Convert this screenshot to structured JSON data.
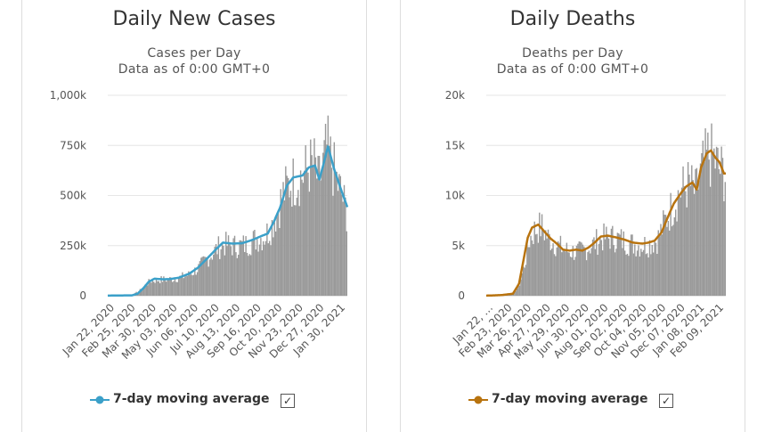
{
  "panels": [
    {
      "title": "Daily New Cases",
      "subtitle": "Cases per Day",
      "data_note": "Data as of 0:00 GMT+0",
      "legend_label": "7-day moving average",
      "legend_color": "#3ba0c9",
      "checked": true
    },
    {
      "title": "Daily Deaths",
      "subtitle": "Deaths per Day",
      "data_note": "Data as of 0:00 GMT+0",
      "legend_label": "7-day moving average",
      "legend_color": "#b8730f",
      "checked": true
    }
  ],
  "chart_data": [
    {
      "type": "bar",
      "title": "Daily New Cases",
      "subtitle": "Cases per Day",
      "bar_color": "#999999",
      "line_color": "#3ba0c9",
      "ylim": [
        0,
        1000000
      ],
      "y_ticks": [
        {
          "value": 0,
          "label": "0"
        },
        {
          "value": 250000,
          "label": "250k"
        },
        {
          "value": 500000,
          "label": "500k"
        },
        {
          "value": 750000,
          "label": "750k"
        },
        {
          "value": 1000000,
          "label": "1,000k"
        }
      ],
      "x_tick_labels": [
        "Jan 22, 2020",
        "Feb 25, 2020",
        "Mar 30, 2020",
        "May 03, 2020",
        "Jun 06, 2020",
        "Jul 10, 2020",
        "Aug 13, 2020",
        "Sep 16, 2020",
        "Oct 20, 2020",
        "Nov 23, 2020",
        "Dec 27, 2020",
        "Jan 30, 2021"
      ],
      "series": [
        {
          "name": "Daily cases",
          "points": [
            [
              "Jan 22, 2020",
              500
            ],
            [
              "Feb 10, 2020",
              2000
            ],
            [
              "Mar 01, 2020",
              2000
            ],
            [
              "Mar 15, 2020",
              30000
            ],
            [
              "Mar 25, 2020",
              62000
            ],
            [
              "Apr 01, 2020",
              78000
            ],
            [
              "Apr 15, 2020",
              82000
            ],
            [
              "May 01, 2020",
              85000
            ],
            [
              "May 15, 2020",
              92000
            ],
            [
              "Jun 01, 2020",
              108000
            ],
            [
              "Jun 15, 2020",
              140000
            ],
            [
              "Jul 01, 2020",
              195000
            ],
            [
              "Jul 15, 2020",
              240000
            ],
            [
              "Jul 25, 2020",
              265000
            ],
            [
              "Aug 15, 2020",
              255000
            ],
            [
              "Aug 31, 2020",
              262000
            ],
            [
              "Sep 15, 2020",
              290000
            ],
            [
              "Sep 30, 2020",
              305000
            ],
            [
              "Oct 10, 2020",
              350000
            ],
            [
              "Oct 20, 2020",
              430000
            ],
            [
              "Oct 31, 2020",
              530000
            ],
            [
              "Nov 10, 2020",
              580000
            ],
            [
              "Nov 20, 2020",
              600000
            ],
            [
              "Dec 01, 2020",
              620000
            ],
            [
              "Dec 10, 2020",
              665000
            ],
            [
              "Dec 20, 2020",
              670000
            ],
            [
              "Dec 25, 2020",
              580000
            ],
            [
              "Jan 01, 2021",
              650000
            ],
            [
              "Jan 08, 2021",
              760000
            ],
            [
              "Jan 15, 2021",
              690000
            ],
            [
              "Jan 25, 2021",
              580000
            ],
            [
              "Feb 01, 2021",
              520000
            ],
            [
              "Feb 10, 2021",
              420000
            ]
          ]
        },
        {
          "name": "7-day moving average",
          "points": [
            [
              "Jan 22, 2020",
              500
            ],
            [
              "Feb 15, 2020",
              1500
            ],
            [
              "Mar 01, 2020",
              2000
            ],
            [
              "Mar 10, 2020",
              10000
            ],
            [
              "Mar 20, 2020",
              40000
            ],
            [
              "Mar 28, 2020",
              70000
            ],
            [
              "Apr 06, 2020",
              85000
            ],
            [
              "Apr 20, 2020",
              82000
            ],
            [
              "May 01, 2020",
              83000
            ],
            [
              "May 15, 2020",
              90000
            ],
            [
              "Jun 01, 2020",
              110000
            ],
            [
              "Jun 15, 2020",
              140000
            ],
            [
              "Jul 01, 2020",
              190000
            ],
            [
              "Jul 15, 2020",
              235000
            ],
            [
              "Jul 25, 2020",
              265000
            ],
            [
              "Aug 10, 2020",
              260000
            ],
            [
              "Aug 25, 2020",
              262000
            ],
            [
              "Sep 10, 2020",
              278000
            ],
            [
              "Sep 25, 2020",
              298000
            ],
            [
              "Oct 05, 2020",
              310000
            ],
            [
              "Oct 15, 2020",
              370000
            ],
            [
              "Oct 25, 2020",
              440000
            ],
            [
              "Nov 05, 2020",
              550000
            ],
            [
              "Nov 15, 2020",
              590000
            ],
            [
              "Nov 30, 2020",
              600000
            ],
            [
              "Dec 10, 2020",
              640000
            ],
            [
              "Dec 20, 2020",
              650000
            ],
            [
              "Dec 27, 2020",
              580000
            ],
            [
              "Jan 03, 2021",
              660000
            ],
            [
              "Jan 10, 2021",
              745000
            ],
            [
              "Jan 20, 2021",
              630000
            ],
            [
              "Feb 01, 2021",
              520000
            ],
            [
              "Feb 12, 2021",
              425000
            ]
          ]
        }
      ]
    },
    {
      "type": "bar",
      "title": "Daily Deaths",
      "subtitle": "Deaths per Day",
      "bar_color": "#999999",
      "line_color": "#b8730f",
      "ylim": [
        0,
        20000
      ],
      "y_ticks": [
        {
          "value": 0,
          "label": "0"
        },
        {
          "value": 5000,
          "label": "5k"
        },
        {
          "value": 10000,
          "label": "10k"
        },
        {
          "value": 15000,
          "label": "15k"
        },
        {
          "value": 20000,
          "label": "20k"
        }
      ],
      "x_tick_labels": [
        "Jan 22, …",
        "Feb 23, 2020",
        "Mar 26, 2020",
        "Apr 27, 2020",
        "May 29, 2020",
        "Jun 30, 2020",
        "Aug 01, 2020",
        "Sep 02, 2020",
        "Oct 04, 2020",
        "Nov 05, 2020",
        "Dec 07, 2020",
        "Jan 08, 2021",
        "Feb 09, 2021"
      ],
      "series": [
        {
          "name": "Daily deaths",
          "points": [
            [
              "Jan 22, 2020",
              10
            ],
            [
              "Feb 15, 2020",
              60
            ],
            [
              "Mar 05, 2020",
              200
            ],
            [
              "Mar 15, 2020",
              1000
            ],
            [
              "Mar 25, 2020",
              3500
            ],
            [
              "Apr 01, 2020",
              5800
            ],
            [
              "Apr 10, 2020",
              6800
            ],
            [
              "Apr 20, 2020",
              7100
            ],
            [
              "May 01, 2020",
              6000
            ],
            [
              "May 15, 2020",
              5200
            ],
            [
              "Jun 01, 2020",
              4600
            ],
            [
              "Jun 20, 2020",
              4500
            ],
            [
              "Jul 01, 2020",
              4800
            ],
            [
              "Jul 15, 2020",
              5400
            ],
            [
              "Jul 25, 2020",
              5900
            ],
            [
              "Aug 10, 2020",
              6000
            ],
            [
              "Aug 25, 2020",
              5800
            ],
            [
              "Sep 10, 2020",
              5400
            ],
            [
              "Sep 25, 2020",
              5200
            ],
            [
              "Oct 10, 2020",
              5300
            ],
            [
              "Oct 25, 2020",
              5800
            ],
            [
              "Nov 05, 2020",
              7500
            ],
            [
              "Nov 20, 2020",
              9500
            ],
            [
              "Dec 01, 2020",
              10800
            ],
            [
              "Dec 15, 2020",
              11500
            ],
            [
              "Dec 25, 2020",
              10500
            ],
            [
              "Jan 05, 2021",
              13000
            ],
            [
              "Jan 15, 2021",
              14500
            ],
            [
              "Jan 25, 2021",
              14000
            ],
            [
              "Feb 01, 2021",
              13000
            ],
            [
              "Feb 12, 2021",
              12500
            ]
          ]
        },
        {
          "name": "7-day moving average",
          "points": [
            [
              "Jan 22, 2020",
              10
            ],
            [
              "Feb 15, 2020",
              60
            ],
            [
              "Mar 05, 2020",
              200
            ],
            [
              "Mar 15, 2020",
              1200
            ],
            [
              "Mar 22, 2020",
              3500
            ],
            [
              "Mar 29, 2020",
              5800
            ],
            [
              "Apr 05, 2020",
              6800
            ],
            [
              "Apr 15, 2020",
              7100
            ],
            [
              "Apr 25, 2020",
              6400
            ],
            [
              "May 05, 2020",
              5700
            ],
            [
              "May 15, 2020",
              5200
            ],
            [
              "May 25, 2020",
              4600
            ],
            [
              "Jun 05, 2020",
              4500
            ],
            [
              "Jun 15, 2020",
              4600
            ],
            [
              "Jun 25, 2020",
              4500
            ],
            [
              "Jul 05, 2020",
              4800
            ],
            [
              "Jul 15, 2020",
              5300
            ],
            [
              "Jul 25, 2020",
              5900
            ],
            [
              "Aug 05, 2020",
              6000
            ],
            [
              "Aug 20, 2020",
              5800
            ],
            [
              "Sep 01, 2020",
              5600
            ],
            [
              "Sep 15, 2020",
              5300
            ],
            [
              "Sep 30, 2020",
              5200
            ],
            [
              "Oct 10, 2020",
              5300
            ],
            [
              "Oct 20, 2020",
              5500
            ],
            [
              "Oct 31, 2020",
              6300
            ],
            [
              "Nov 10, 2020",
              7800
            ],
            [
              "Nov 20, 2020",
              9200
            ],
            [
              "Dec 01, 2020",
              10200
            ],
            [
              "Dec 10, 2020",
              10900
            ],
            [
              "Dec 20, 2020",
              11300
            ],
            [
              "Dec 27, 2020",
              10600
            ],
            [
              "Jan 03, 2021",
              12800
            ],
            [
              "Jan 12, 2021",
              14200
            ],
            [
              "Jan 19, 2021",
              14500
            ],
            [
              "Jan 26, 2021",
              13800
            ],
            [
              "Feb 02, 2021",
              13300
            ],
            [
              "Feb 09, 2021",
              12200
            ]
          ]
        }
      ]
    }
  ]
}
